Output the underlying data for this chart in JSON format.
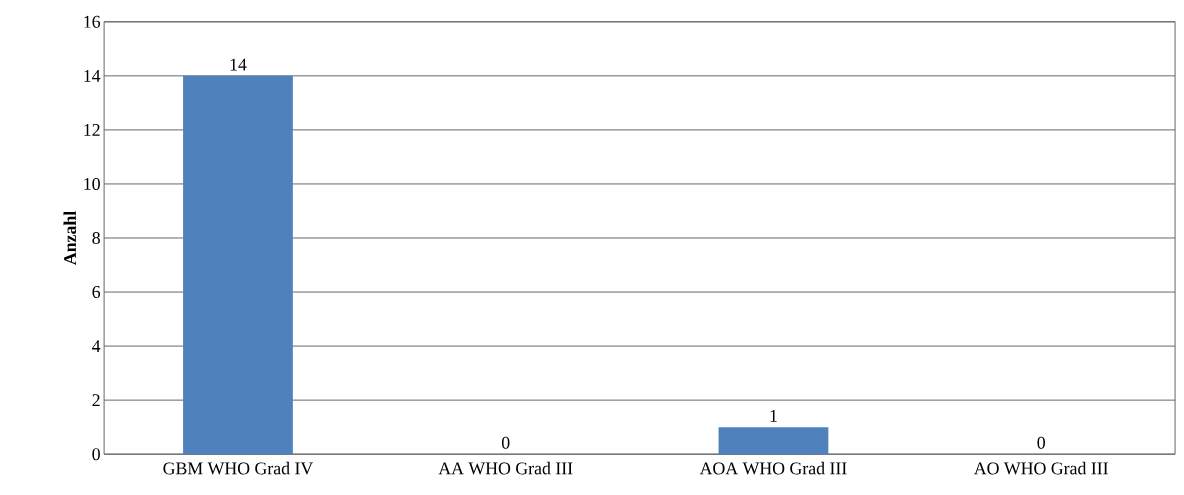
{
  "chart_data": {
    "type": "bar",
    "ylabel": "Anzahl",
    "categories": [
      "GBM WHO Grad IV",
      "AA WHO Grad III",
      "AOA WHO Grad III",
      "AO WHO Grad III"
    ],
    "values": [
      14,
      0,
      1,
      0
    ],
    "color": "#4f81bd",
    "ylim": [
      0,
      16
    ],
    "yticks": [
      0,
      2,
      4,
      6,
      8,
      10,
      12,
      14,
      16
    ],
    "grid": "y",
    "data_labels": true
  }
}
